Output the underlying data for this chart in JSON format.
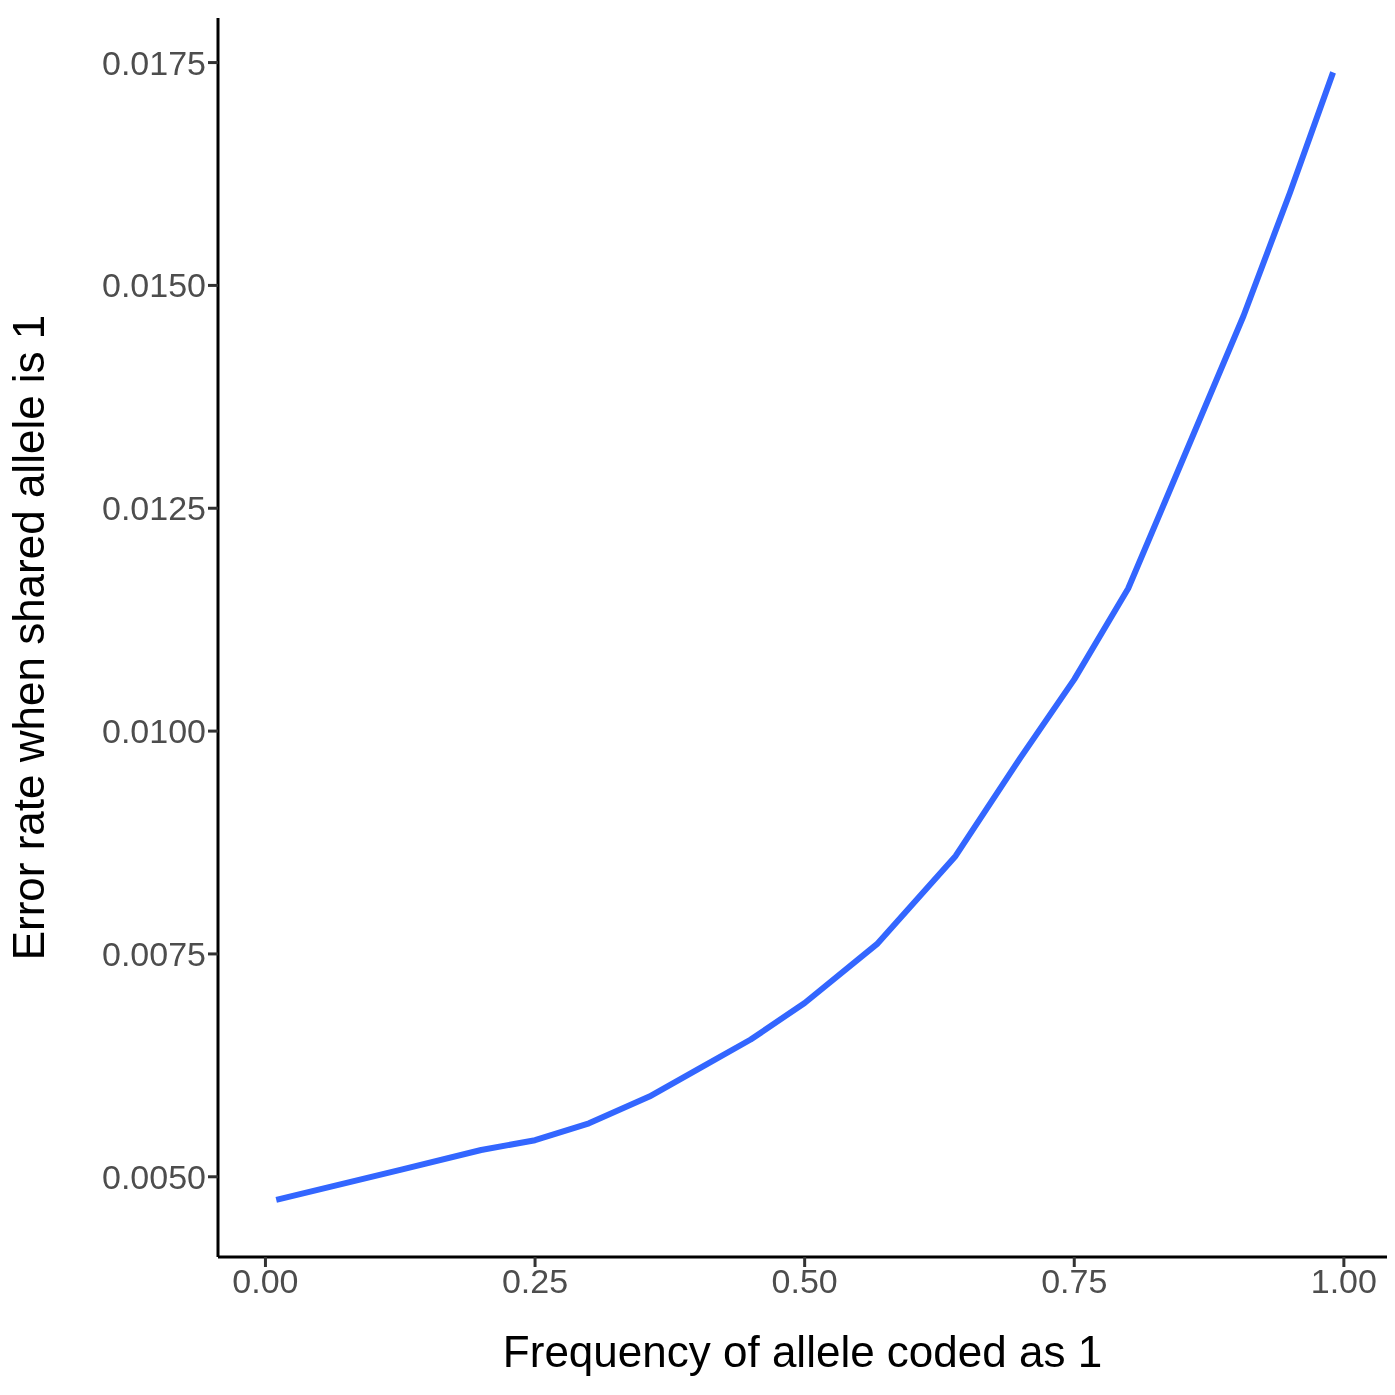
{
  "chart_data": {
    "type": "line",
    "xlabel": "Frequency of allele coded as 1",
    "ylabel": "Error rate when shared allele is 1",
    "x": [
      0.01,
      0.126,
      0.2,
      0.25,
      0.3,
      0.356,
      0.4,
      0.45,
      0.5,
      0.567,
      0.64,
      0.7,
      0.75,
      0.8,
      0.834,
      0.907,
      0.95,
      0.99
    ],
    "series": [
      {
        "color": "#3366ff",
        "values": [
          0.00474,
          0.00508,
          0.0053,
          0.00541,
          0.0056,
          0.0059,
          0.0062,
          0.00654,
          0.00695,
          0.00761,
          0.0086,
          0.0097,
          0.01058,
          0.0116,
          0.01257,
          0.01466,
          0.01604,
          0.01739
        ]
      }
    ],
    "xlim": [
      -0.044,
      1.04
    ],
    "xticks": [
      {
        "value": 0,
        "label": "0.00"
      },
      {
        "value": 0.25,
        "label": "0.25"
      },
      {
        "value": 0.5,
        "label": "0.50"
      },
      {
        "value": 0.75,
        "label": "0.75"
      },
      {
        "value": 1,
        "label": "1.00"
      }
    ],
    "ylim": [
      0.0041,
      0.018
    ],
    "yticks": [
      {
        "value": 0.005,
        "label": "0.0050"
      },
      {
        "value": 0.0075,
        "label": "0.0075"
      },
      {
        "value": 0.01,
        "label": "0.0100"
      },
      {
        "value": 0.0125,
        "label": "0.0125"
      },
      {
        "value": 0.015,
        "label": "0.0150"
      },
      {
        "value": 0.0175,
        "label": "0.0175"
      }
    ],
    "grid": false,
    "legend": false,
    "marker": "none",
    "line_style": "solid"
  }
}
